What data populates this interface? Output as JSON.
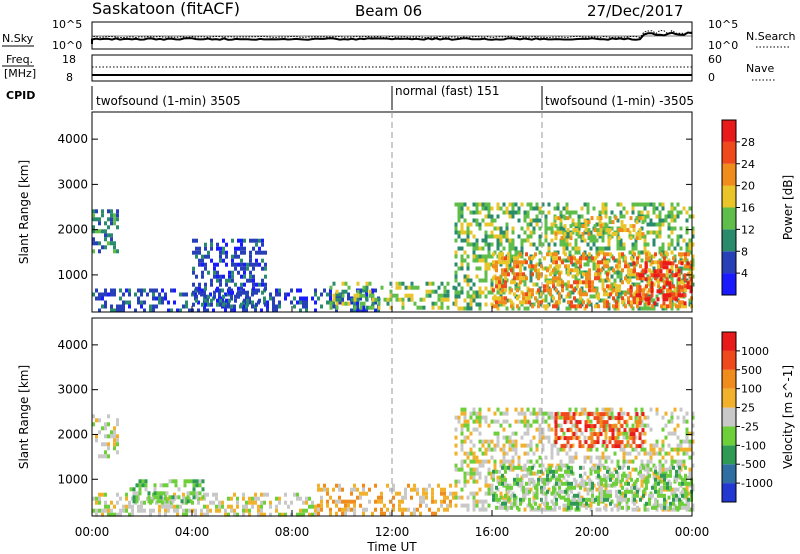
{
  "header": {
    "title": "Saskatoon (fitACF)",
    "beam": "Beam 06",
    "date": "27/Dec/2017"
  },
  "top_panels": {
    "nsky_label": "N.Sky",
    "nsearch_label": "N.Search",
    "noise_ticks": [
      "10^5",
      "10^0"
    ],
    "freq_label": "Freq.",
    "freq_unit": "[MHz]",
    "freq_ticks": [
      "18",
      "8"
    ],
    "nave_label": "Nave",
    "nave_ticks": [
      "60",
      "0"
    ],
    "cpid_label": "CPID",
    "cpid_segments": [
      {
        "label": "twofsound (1-min) 3505",
        "start_hour": 0
      },
      {
        "label": "normal (fast) 151",
        "start_hour": 12
      },
      {
        "label": "twofsound (1-min) -3505",
        "start_hour": 18
      }
    ]
  },
  "chart_data": [
    {
      "type": "heatmap",
      "title": "",
      "ylabel": "Slant Range [km]",
      "xlabel": "",
      "x_range_hours": [
        0,
        24
      ],
      "ylim": [
        180,
        4600
      ],
      "y_ticks": [
        1000,
        2000,
        3000,
        4000
      ],
      "x_tick_labels": [
        "00:00",
        "04:00",
        "08:00",
        "12:00",
        "16:00",
        "20:00",
        "00:00"
      ],
      "colorbar": {
        "label": "Power [dB]",
        "ticks": [
          "4",
          "8",
          "12",
          "16",
          "20",
          "24",
          "28"
        ],
        "colors": [
          "#1a1aff",
          "#2740b8",
          "#2a8a6c",
          "#5fbd4a",
          "#e9c52a",
          "#f08c1c",
          "#f04a1c",
          "#e81a1a"
        ]
      },
      "regions": [
        {
          "h0": 0.0,
          "h1": 1.0,
          "r0": 1500,
          "r1": 2450,
          "level": 2
        },
        {
          "h0": 0.0,
          "h1": 11.5,
          "r0": 200,
          "r1": 700,
          "level": 1
        },
        {
          "h0": 4.0,
          "h1": 7.0,
          "r0": 300,
          "r1": 1800,
          "level": 1
        },
        {
          "h0": 9.5,
          "h1": 14.5,
          "r0": 250,
          "r1": 850,
          "level": 3
        },
        {
          "h0": 14.5,
          "h1": 24.0,
          "r0": 300,
          "r1": 2600,
          "level": 3
        },
        {
          "h0": 16.0,
          "h1": 24.0,
          "r0": 300,
          "r1": 1500,
          "level": 5
        },
        {
          "h0": 21.5,
          "h1": 24.0,
          "r0": 400,
          "r1": 1300,
          "level": 7
        },
        {
          "h0": 18.5,
          "h1": 22.0,
          "r0": 1800,
          "r1": 2300,
          "level": 4
        }
      ]
    },
    {
      "type": "heatmap",
      "title": "",
      "ylabel": "Slant Range [km]",
      "xlabel": "Time UT",
      "x_range_hours": [
        0,
        24
      ],
      "ylim": [
        180,
        4600
      ],
      "y_ticks": [
        1000,
        2000,
        3000,
        4000
      ],
      "x_tick_labels": [
        "00:00",
        "04:00",
        "08:00",
        "12:00",
        "16:00",
        "20:00",
        "00:00"
      ],
      "colorbar": {
        "label": "Velocity [m s^-1]",
        "ticks": [
          "1000",
          "500",
          "100",
          "25",
          "-25",
          "-100",
          "-500",
          "-1000"
        ],
        "colors": [
          "#2238d0",
          "#2f6ea0",
          "#2f9a55",
          "#6dcf3a",
          "#c8c8c8",
          "#f2b12a",
          "#f08c1c",
          "#f04a1c",
          "#e81a1a"
        ]
      },
      "regions": [
        {
          "h0": 0.0,
          "h1": 1.0,
          "r0": 1500,
          "r1": 2450,
          "level": 4
        },
        {
          "h0": 0.0,
          "h1": 9.0,
          "r0": 200,
          "r1": 700,
          "level": 4
        },
        {
          "h0": 1.5,
          "h1": 4.5,
          "r0": 500,
          "r1": 1000,
          "level": 3
        },
        {
          "h0": 9.0,
          "h1": 14.5,
          "r0": 200,
          "r1": 900,
          "level": 5
        },
        {
          "h0": 14.5,
          "h1": 24.0,
          "r0": 300,
          "r1": 2600,
          "level": 4
        },
        {
          "h0": 16.0,
          "h1": 24.0,
          "r0": 400,
          "r1": 1300,
          "level": 3
        },
        {
          "h0": 18.5,
          "h1": 22.0,
          "r0": 1700,
          "r1": 2500,
          "level": 7
        }
      ]
    }
  ]
}
